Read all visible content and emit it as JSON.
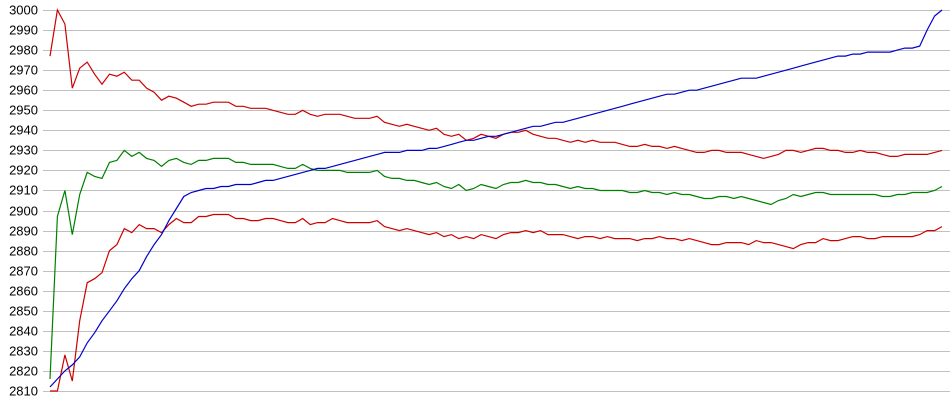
{
  "chart_data": {
    "type": "line",
    "title": "",
    "xlabel": "",
    "ylabel": "",
    "ylim": [
      2810,
      3000
    ],
    "yticks": [
      3000,
      2990,
      2980,
      2970,
      2960,
      2950,
      2940,
      2930,
      2920,
      2910,
      2900,
      2890,
      2880,
      2870,
      2860,
      2850,
      2840,
      2830,
      2820,
      2810
    ],
    "grid": "horizontal",
    "legend": "none",
    "series": [
      {
        "color": "#cc0000",
        "values": [
          2977,
          3000,
          2993,
          2961,
          2971,
          2974,
          2968,
          2963,
          2968,
          2967,
          2969,
          2965,
          2965,
          2961,
          2959,
          2955,
          2957,
          2956,
          2954,
          2952,
          2953,
          2953,
          2954,
          2954,
          2954,
          2952,
          2952,
          2951,
          2951,
          2951,
          2950,
          2949,
          2948,
          2948,
          2950,
          2948,
          2947,
          2948,
          2948,
          2948,
          2947,
          2946,
          2946,
          2946,
          2947,
          2944,
          2943,
          2942,
          2943,
          2942,
          2941,
          2940,
          2941,
          2938,
          2937,
          2938,
          2935,
          2936,
          2938,
          2937,
          2936,
          2938,
          2939,
          2939,
          2940,
          2938,
          2937,
          2936,
          2936,
          2935,
          2934,
          2935,
          2934,
          2935,
          2934,
          2934,
          2934,
          2933,
          2932,
          2932,
          2933,
          2932,
          2932,
          2931,
          2932,
          2931,
          2930,
          2929,
          2929,
          2930,
          2930,
          2929,
          2929,
          2929,
          2928,
          2927,
          2926,
          2927,
          2928,
          2930,
          2930,
          2929,
          2930,
          2931,
          2931,
          2930,
          2930,
          2929,
          2929,
          2930,
          2929,
          2929,
          2928,
          2927,
          2927,
          2928,
          2928,
          2928,
          2928,
          2929,
          2930
        ]
      },
      {
        "color": "#008000",
        "values": [
          2816,
          2897,
          2910,
          2888,
          2908,
          2919,
          2917,
          2916,
          2924,
          2925,
          2930,
          2927,
          2929,
          2926,
          2925,
          2922,
          2925,
          2926,
          2924,
          2923,
          2925,
          2925,
          2926,
          2926,
          2926,
          2924,
          2924,
          2923,
          2923,
          2923,
          2923,
          2922,
          2921,
          2921,
          2923,
          2921,
          2920,
          2920,
          2920,
          2920,
          2919,
          2919,
          2919,
          2919,
          2920,
          2917,
          2916,
          2916,
          2915,
          2915,
          2914,
          2913,
          2914,
          2912,
          2911,
          2913,
          2910,
          2911,
          2913,
          2912,
          2911,
          2913,
          2914,
          2914,
          2915,
          2914,
          2914,
          2913,
          2913,
          2912,
          2911,
          2912,
          2911,
          2911,
          2910,
          2910,
          2910,
          2910,
          2909,
          2909,
          2910,
          2909,
          2909,
          2908,
          2909,
          2908,
          2908,
          2907,
          2906,
          2906,
          2907,
          2907,
          2906,
          2907,
          2906,
          2905,
          2904,
          2903,
          2905,
          2906,
          2908,
          2907,
          2908,
          2909,
          2909,
          2908,
          2908,
          2908,
          2908,
          2908,
          2908,
          2908,
          2907,
          2907,
          2908,
          2908,
          2909,
          2909,
          2909,
          2910,
          2912
        ]
      },
      {
        "color": "#cc0000",
        "values": [
          2810,
          2810,
          2828,
          2815,
          2845,
          2864,
          2866,
          2869,
          2880,
          2883,
          2891,
          2889,
          2893,
          2891,
          2891,
          2889,
          2893,
          2896,
          2894,
          2894,
          2897,
          2897,
          2898,
          2898,
          2898,
          2896,
          2896,
          2895,
          2895,
          2896,
          2896,
          2895,
          2894,
          2894,
          2896,
          2893,
          2894,
          2894,
          2896,
          2895,
          2894,
          2894,
          2894,
          2894,
          2895,
          2892,
          2891,
          2890,
          2891,
          2890,
          2889,
          2888,
          2889,
          2887,
          2888,
          2886,
          2887,
          2886,
          2888,
          2887,
          2886,
          2888,
          2889,
          2889,
          2890,
          2889,
          2890,
          2888,
          2888,
          2888,
          2887,
          2886,
          2887,
          2887,
          2886,
          2887,
          2886,
          2886,
          2886,
          2885,
          2886,
          2886,
          2887,
          2886,
          2886,
          2885,
          2886,
          2885,
          2884,
          2883,
          2883,
          2884,
          2884,
          2884,
          2883,
          2885,
          2884,
          2884,
          2883,
          2882,
          2881,
          2883,
          2884,
          2884,
          2886,
          2885,
          2885,
          2886,
          2887,
          2887,
          2886,
          2886,
          2887,
          2887,
          2887,
          2887,
          2887,
          2888,
          2890,
          2890,
          2892
        ]
      },
      {
        "color": "#0000cc",
        "values": [
          2812,
          2816,
          2820,
          2823,
          2827,
          2834,
          2839,
          2845,
          2850,
          2855,
          2861,
          2866,
          2870,
          2877,
          2883,
          2888,
          2895,
          2901,
          2907,
          2909,
          2910,
          2911,
          2911,
          2912,
          2912,
          2913,
          2913,
          2913,
          2914,
          2915,
          2915,
          2916,
          2917,
          2918,
          2919,
          2920,
          2921,
          2921,
          2922,
          2923,
          2924,
          2925,
          2926,
          2927,
          2928,
          2929,
          2929,
          2929,
          2930,
          2930,
          2930,
          2931,
          2931,
          2932,
          2933,
          2934,
          2935,
          2935,
          2936,
          2937,
          2937,
          2938,
          2939,
          2940,
          2941,
          2942,
          2942,
          2943,
          2944,
          2944,
          2945,
          2946,
          2947,
          2948,
          2949,
          2950,
          2951,
          2952,
          2953,
          2954,
          2955,
          2956,
          2957,
          2958,
          2958,
          2959,
          2960,
          2960,
          2961,
          2962,
          2963,
          2964,
          2965,
          2966,
          2966,
          2966,
          2967,
          2968,
          2969,
          2970,
          2971,
          2972,
          2973,
          2974,
          2975,
          2976,
          2977,
          2977,
          2978,
          2978,
          2979,
          2979,
          2979,
          2979,
          2980,
          2981,
          2981,
          2982,
          2990,
          2997,
          3000
        ]
      }
    ]
  }
}
